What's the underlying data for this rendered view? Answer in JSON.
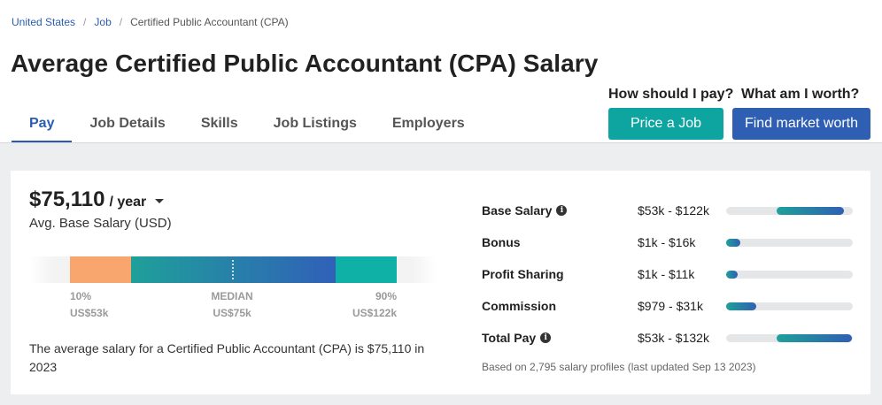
{
  "breadcrumb": {
    "items": [
      "United States",
      "Job"
    ],
    "current": "Certified Public Accountant (CPA)"
  },
  "page_title": "Average Certified Public Accountant (CPA) Salary",
  "tabs": [
    {
      "label": "Pay",
      "active": true
    },
    {
      "label": "Job Details",
      "active": false
    },
    {
      "label": "Skills",
      "active": false
    },
    {
      "label": "Job Listings",
      "active": false
    },
    {
      "label": "Employers",
      "active": false
    }
  ],
  "cta": {
    "price": {
      "question": "How should I pay?",
      "button": "Price a Job"
    },
    "worth": {
      "question": "What am I worth?",
      "button": "Find market worth"
    }
  },
  "salary": {
    "amount": "$75,110",
    "period": "/ year",
    "subtitle": "Avg. Base Salary (USD)",
    "range": {
      "p10_label": "10%",
      "p10_value": "US$53k",
      "median_label": "MEDIAN",
      "median_value": "US$75k",
      "p90_label": "90%",
      "p90_value": "US$122k"
    },
    "summary": "The average salary for a Certified Public Accountant (CPA) is $75,110 in 2023"
  },
  "pay_breakdown": [
    {
      "label": "Base Salary",
      "info_icon": true,
      "range": "$53k - $122k",
      "bar_start": 0.4,
      "bar_end": 0.93
    },
    {
      "label": "Bonus",
      "info_icon": false,
      "range": "$1k - $16k",
      "bar_start": 0.0,
      "bar_end": 0.11
    },
    {
      "label": "Profit Sharing",
      "info_icon": false,
      "range": "$1k - $11k",
      "bar_start": 0.0,
      "bar_end": 0.07
    },
    {
      "label": "Commission",
      "info_icon": false,
      "range": "$979 - $31k",
      "bar_start": 0.0,
      "bar_end": 0.24
    },
    {
      "label": "Total Pay",
      "info_icon": true,
      "range": "$53k - $132k",
      "bar_start": 0.4,
      "bar_end": 0.99
    }
  ],
  "footnote": "Based on 2,795 salary profiles (last updated Sep 13 2023)",
  "colors": {
    "link_blue": "#2a5db0",
    "teal": "#0ea5a0",
    "blue_button": "#2f5fb3",
    "orange": "#f8a56e"
  }
}
